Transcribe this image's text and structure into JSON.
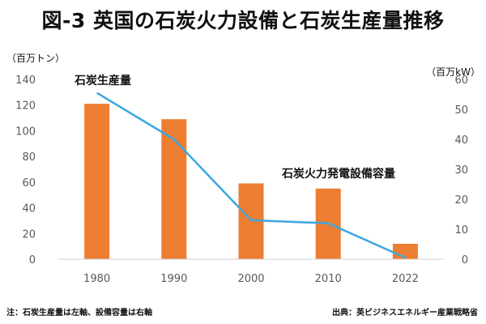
{
  "chart_data": {
    "type": "bar+line",
    "title": "図-3 英国の石炭火力設備と石炭生産量推移",
    "categories": [
      "1980",
      "1990",
      "2000",
      "2010",
      "2022"
    ],
    "series": [
      {
        "name": "石炭生産量",
        "type": "bar",
        "axis": "left",
        "color": "#ed7d31",
        "values": [
          121,
          109,
          59,
          55,
          12
        ]
      },
      {
        "name": "石炭火力発電設備容量",
        "type": "line",
        "axis": "right",
        "color": "#3ba7e0",
        "values": [
          55.5,
          40,
          13,
          12,
          0.5
        ]
      }
    ],
    "left_axis": {
      "unit": "（百万トン）",
      "min": 0,
      "max": 140,
      "ticks": [
        0,
        20,
        40,
        60,
        80,
        100,
        120,
        140
      ]
    },
    "right_axis": {
      "unit": "（百万kW）",
      "min": 0,
      "max": 60,
      "ticks": [
        0,
        10,
        20,
        30,
        40,
        50,
        60
      ]
    },
    "grid": false
  },
  "footnote": "注：石炭生産量は左軸、設備容量は右軸",
  "source": "出典：英ビジネスエネルギー産業戦略省"
}
